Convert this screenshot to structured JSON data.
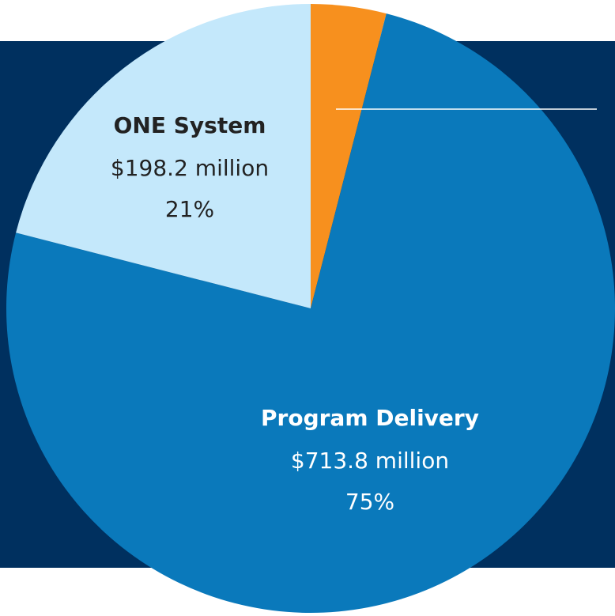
{
  "chart_data": {
    "type": "pie",
    "categories": [
      null,
      "Program Delivery",
      "ONE System"
    ],
    "values": [
      4,
      75,
      21
    ],
    "value_labels": [
      null,
      "75%",
      "21%"
    ],
    "amount_labels": [
      null,
      "$713.8 million",
      "$198.2 million"
    ],
    "colors": [
      "#f7901e",
      "#0a79bb",
      "#c4e8fb"
    ]
  }
}
